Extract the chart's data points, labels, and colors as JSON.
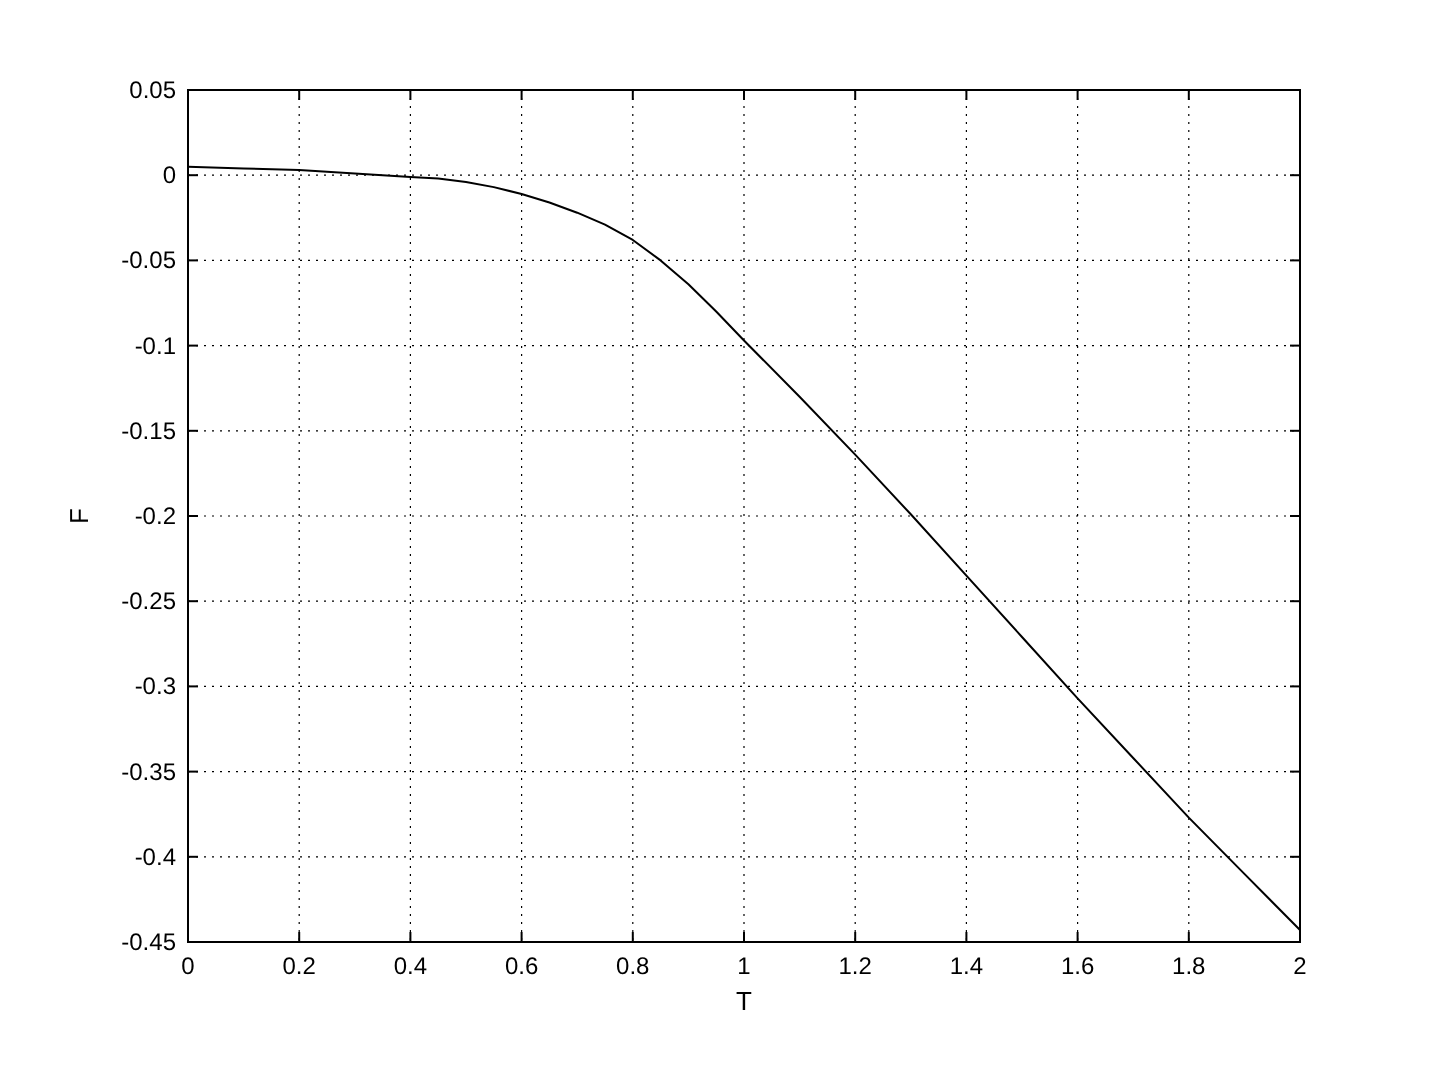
{
  "chart_data": {
    "type": "line",
    "xlabel": "T",
    "ylabel": "F",
    "x": [
      0,
      0.1,
      0.2,
      0.3,
      0.4,
      0.45,
      0.5,
      0.55,
      0.6,
      0.65,
      0.7,
      0.75,
      0.8,
      0.85,
      0.9,
      0.95,
      1.0,
      1.1,
      1.2,
      1.3,
      1.4,
      1.5,
      1.6,
      1.7,
      1.8,
      1.9,
      2.0
    ],
    "series": [
      {
        "color": "#000000",
        "values": [
          0.005,
          0.004,
          0.003,
          0.001,
          -0.001,
          -0.002,
          -0.004,
          -0.007,
          -0.011,
          -0.016,
          -0.022,
          -0.029,
          -0.038,
          -0.05,
          -0.064,
          -0.08,
          -0.097,
          -0.13,
          -0.164,
          -0.199,
          -0.235,
          -0.271,
          -0.307,
          -0.342,
          -0.377,
          -0.41,
          -0.443
        ]
      }
    ],
    "xlim": [
      0,
      2
    ],
    "xticks": [
      0,
      0.2,
      0.4,
      0.6,
      0.8,
      1,
      1.2,
      1.4,
      1.6,
      1.8,
      2
    ],
    "ylim": [
      -0.45,
      0.05
    ],
    "yticks": [
      -0.45,
      -0.4,
      -0.35,
      -0.3,
      -0.25,
      -0.2,
      -0.15,
      -0.1,
      -0.05,
      0,
      0.05
    ],
    "grid": true,
    "line_style": "solid",
    "marker": "none"
  }
}
